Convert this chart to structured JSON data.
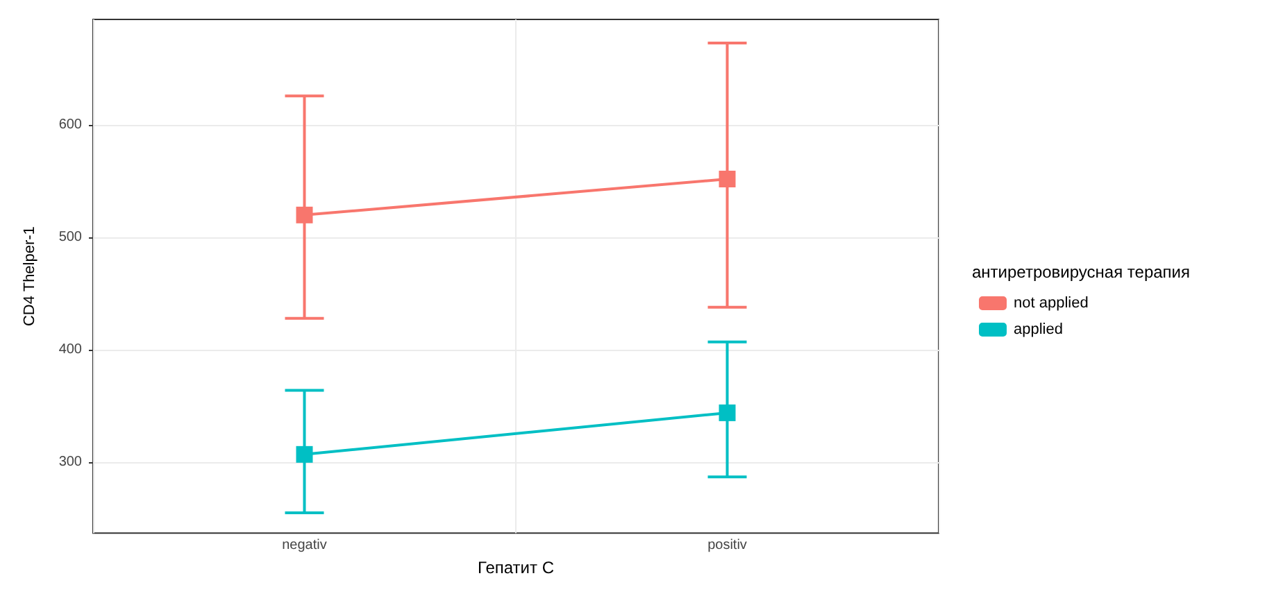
{
  "chart_data": {
    "type": "line",
    "xlabel": "Гепатит С",
    "ylabel": "CD4 Thelper-1",
    "legend_title": "антиретровирусная терапия",
    "categories": [
      "negativ",
      "positiv"
    ],
    "series": [
      {
        "name": "not applied",
        "color": "#f8766d",
        "values": [
          520,
          552
        ],
        "errors": [
          [
            428,
            626
          ],
          [
            438,
            673
          ]
        ]
      },
      {
        "name": "applied",
        "color": "#00bfc4",
        "values": [
          307,
          344
        ],
        "errors": [
          [
            255,
            364
          ],
          [
            287,
            407
          ]
        ]
      }
    ],
    "ylim": [
      237,
      694
    ],
    "yticks": [
      300,
      400,
      500,
      600
    ],
    "grid": true,
    "legend": "right",
    "marker": "square",
    "line_style": "solid"
  }
}
